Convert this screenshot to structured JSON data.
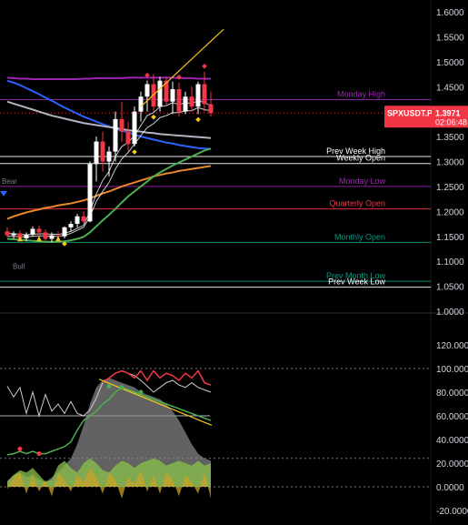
{
  "chart_data": [
    {
      "type": "candlestick",
      "symbol": "SPXUSDT.P",
      "last_price": "1.3971",
      "countdown": "02:06:48",
      "ylim": [
        1.0,
        1.6
      ],
      "y_ticks": [
        "1.6000",
        "1.5500",
        "1.5000",
        "1.4500",
        "1.4000",
        "1.3500",
        "1.3000",
        "1.2500",
        "1.2000",
        "1.1500",
        "1.1000",
        "1.0500",
        "1.0000"
      ],
      "levels": [
        {
          "name": "Monday High",
          "value": 1.424,
          "color": "#9c27b0"
        },
        {
          "name": "Prev Week High",
          "value": 1.31,
          "color": "#ffffff"
        },
        {
          "name": "Weekly Open",
          "value": 1.296,
          "color": "#ffffff"
        },
        {
          "name": "Monday Low",
          "value": 1.25,
          "color": "#9c27b0"
        },
        {
          "name": "Quarterly Open",
          "value": 1.205,
          "color": "#f23645"
        },
        {
          "name": "Monthly Open",
          "value": 1.138,
          "color": "#089981"
        },
        {
          "name": "Prev Month Low",
          "value": 1.06,
          "color": "#089981"
        },
        {
          "name": "Prev Week Low",
          "value": 1.048,
          "color": "#ffffff"
        }
      ],
      "annotations": [
        "Bear",
        "Bull"
      ],
      "candles": [
        [
          1.16,
          1.168,
          1.148,
          1.152
        ],
        [
          1.152,
          1.16,
          1.145,
          1.156
        ],
        [
          1.156,
          1.162,
          1.142,
          1.146
        ],
        [
          1.146,
          1.158,
          1.14,
          1.154
        ],
        [
          1.154,
          1.17,
          1.15,
          1.165
        ],
        [
          1.165,
          1.172,
          1.152,
          1.158
        ],
        [
          1.158,
          1.164,
          1.14,
          1.145
        ],
        [
          1.145,
          1.158,
          1.138,
          1.152
        ],
        [
          1.152,
          1.16,
          1.14,
          1.15
        ],
        [
          1.15,
          1.17,
          1.146,
          1.168
        ],
        [
          1.168,
          1.18,
          1.16,
          1.175
        ],
        [
          1.175,
          1.195,
          1.168,
          1.19
        ],
        [
          1.19,
          1.2,
          1.176,
          1.18
        ],
        [
          1.18,
          1.3,
          1.178,
          1.295
        ],
        [
          1.295,
          1.35,
          1.26,
          1.34
        ],
        [
          1.34,
          1.36,
          1.28,
          1.3
        ],
        [
          1.3,
          1.33,
          1.27,
          1.32
        ],
        [
          1.32,
          1.4,
          1.3,
          1.385
        ],
        [
          1.385,
          1.42,
          1.34,
          1.36
        ],
        [
          1.36,
          1.38,
          1.32,
          1.335
        ],
        [
          1.335,
          1.41,
          1.33,
          1.4
        ],
        [
          1.4,
          1.44,
          1.38,
          1.43
        ],
        [
          1.43,
          1.462,
          1.4,
          1.455
        ],
        [
          1.455,
          1.475,
          1.4,
          1.41
        ],
        [
          1.41,
          1.47,
          1.4,
          1.462
        ],
        [
          1.462,
          1.47,
          1.41,
          1.42
        ],
        [
          1.42,
          1.46,
          1.395,
          1.445
        ],
        [
          1.445,
          1.458,
          1.39,
          1.4
        ],
        [
          1.4,
          1.44,
          1.395,
          1.43
        ],
        [
          1.43,
          1.45,
          1.4,
          1.41
        ],
        [
          1.41,
          1.46,
          1.395,
          1.455
        ],
        [
          1.455,
          1.48,
          1.4,
          1.415
        ],
        [
          1.415,
          1.44,
          1.39,
          1.397
        ]
      ],
      "series": [
        {
          "values": [
            1.468,
            1.467,
            1.466,
            1.466,
            1.465,
            1.465,
            1.465,
            1.465,
            1.465,
            1.465,
            1.465,
            1.465,
            1.466,
            1.466,
            1.467,
            1.467,
            1.467,
            1.467,
            1.467,
            1.468,
            1.468,
            1.468,
            1.468,
            1.468,
            1.468,
            1.468,
            1.468,
            1.467,
            1.467,
            1.467,
            1.466,
            1.466,
            1.466
          ],
          "color": "#9c27b0"
        },
        {
          "values": [
            1.462,
            1.458,
            1.453,
            1.447,
            1.441,
            1.435,
            1.428,
            1.422,
            1.415,
            1.408,
            1.402,
            1.396,
            1.39,
            1.385,
            1.38,
            1.375,
            1.37,
            1.366,
            1.362,
            1.358,
            1.354,
            1.35,
            1.347,
            1.344,
            1.341,
            1.338,
            1.336,
            1.333,
            1.331,
            1.329,
            1.327,
            1.326,
            1.325
          ],
          "color": "#2962ff"
        },
        {
          "values": [
            1.42,
            1.416,
            1.412,
            1.408,
            1.404,
            1.4,
            1.396,
            1.392,
            1.389,
            1.386,
            1.383,
            1.38,
            1.377,
            1.375,
            1.373,
            1.371,
            1.369,
            1.367,
            1.365,
            1.363,
            1.361,
            1.36,
            1.358,
            1.357,
            1.355,
            1.354,
            1.353,
            1.352,
            1.351,
            1.35,
            1.349,
            1.348,
            1.347
          ],
          "color": "#b2b5be"
        },
        {
          "values": [
            1.185,
            1.19,
            1.194,
            1.198,
            1.201,
            1.204,
            1.207,
            1.209,
            1.212,
            1.214,
            1.216,
            1.219,
            1.222,
            1.226,
            1.231,
            1.236,
            1.24,
            1.245,
            1.25,
            1.254,
            1.258,
            1.262,
            1.266,
            1.27,
            1.273,
            1.276,
            1.278,
            1.281,
            1.283,
            1.285,
            1.287,
            1.289,
            1.291
          ],
          "color": "#e8882a"
        },
        {
          "values": [
            1.145,
            1.144,
            1.143,
            1.142,
            1.141,
            1.14,
            1.139,
            1.139,
            1.139,
            1.14,
            1.142,
            1.145,
            1.149,
            1.158,
            1.17,
            1.182,
            1.193,
            1.205,
            1.218,
            1.23,
            1.24,
            1.25,
            1.26,
            1.27,
            1.278,
            1.285,
            1.292,
            1.298,
            1.304,
            1.31,
            1.316,
            1.322,
            1.326
          ],
          "color": "#4caf50"
        },
        {
          "values": [
            1.15,
            1.15,
            1.149,
            1.149,
            1.15,
            1.151,
            1.151,
            1.15,
            1.15,
            1.152,
            1.156,
            1.162,
            1.168,
            1.19,
            1.22,
            1.24,
            1.258,
            1.285,
            1.305,
            1.318,
            1.335,
            1.352,
            1.368,
            1.376,
            1.388,
            1.392,
            1.398,
            1.398,
            1.402,
            1.402,
            1.408,
            1.404,
            1.402
          ],
          "color": "#ffffff"
        },
        {
          "values": [
            1.156,
            1.155,
            1.154,
            1.153,
            1.154,
            1.155,
            1.155,
            1.154,
            1.154,
            1.156,
            1.16,
            1.166,
            1.172,
            1.2,
            1.235,
            1.262,
            1.28,
            1.31,
            1.33,
            1.338,
            1.352,
            1.372,
            1.392,
            1.398,
            1.41,
            1.412,
            1.418,
            1.414,
            1.418,
            1.416,
            1.422,
            1.418,
            1.412
          ],
          "color": "#ffffff"
        }
      ],
      "trendline": {
        "from": [
          21,
          1.41
        ],
        "to": [
          34,
          1.565
        ],
        "color": "#f5c518"
      }
    },
    {
      "type": "oscillator",
      "ylim": [
        -20,
        120
      ],
      "y_ticks": [
        "120.0000",
        "100.0000",
        "80.0000",
        "60.0000",
        "40.0000",
        "20.0000",
        "0.0000",
        "-20.0000"
      ],
      "dotted_levels": [
        100,
        24,
        0
      ],
      "solid_level": 60,
      "series": [
        {
          "values": [
            85,
            76,
            84,
            62,
            80,
            60,
            78,
            64,
            70,
            62,
            72,
            62,
            60,
            65,
            75,
            88,
            92,
            96,
            98,
            96,
            94,
            90,
            85,
            80,
            84,
            88,
            90,
            86,
            84,
            88,
            84,
            82,
            80
          ],
          "color": "#cccccc"
        },
        {
          "values": [
            null,
            null,
            null,
            null,
            null,
            null,
            null,
            null,
            null,
            null,
            null,
            null,
            null,
            null,
            null,
            88,
            92,
            96,
            98,
            96,
            92,
            98,
            90,
            98,
            92,
            96,
            94,
            90,
            96,
            92,
            98,
            88,
            86
          ],
          "color": "#f23645"
        },
        {
          "values": [
            27,
            28,
            30,
            28,
            30,
            28,
            28,
            30,
            32,
            34,
            38,
            48,
            56,
            60,
            64,
            70,
            74,
            80,
            84,
            82,
            80,
            78,
            76,
            74,
            72,
            70,
            68,
            66,
            64,
            62,
            60,
            58,
            56
          ],
          "color": "#4caf50"
        }
      ],
      "fill_series": [
        {
          "values": [
            5,
            10,
            12,
            8,
            10,
            6,
            4,
            8,
            12,
            18,
            24,
            36,
            52,
            70,
            84,
            90,
            92,
            90,
            88,
            86,
            84,
            80,
            78,
            76,
            74,
            70,
            64,
            56,
            46,
            36,
            28,
            24,
            22
          ],
          "color": "#8c8c8c"
        },
        {
          "values": [
            4,
            10,
            14,
            12,
            16,
            10,
            4,
            6,
            18,
            22,
            16,
            12,
            20,
            24,
            20,
            14,
            12,
            18,
            22,
            20,
            16,
            20,
            22,
            24,
            22,
            18,
            20,
            22,
            20,
            18,
            22,
            18,
            20
          ],
          "color": "#8bc34a"
        },
        {
          "values": [
            -2,
            8,
            12,
            -6,
            10,
            -4,
            6,
            -8,
            12,
            6,
            -4,
            10,
            4,
            16,
            8,
            -6,
            12,
            6,
            -10,
            8,
            2,
            14,
            -4,
            10,
            -6,
            12,
            6,
            -8,
            10,
            4,
            -6,
            12,
            -10
          ],
          "color": "#c9a227"
        }
      ],
      "trendline": {
        "from": [
          23,
          91
        ],
        "to": [
          35,
          52
        ],
        "color": "#f5c518"
      }
    }
  ]
}
